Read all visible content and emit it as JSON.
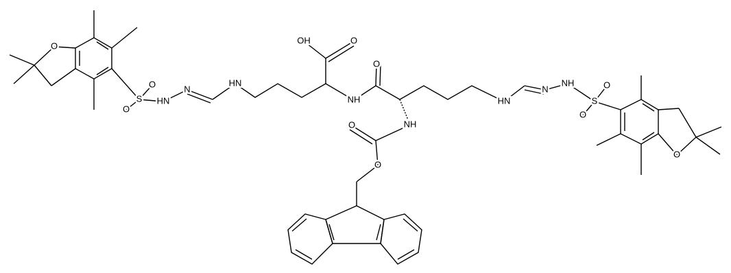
{
  "atoms": [
    "O",
    "S",
    "O",
    "O",
    "HN",
    "N",
    "HN",
    "OH",
    "O",
    "NH",
    "O",
    "NH",
    "O",
    "O",
    "HN",
    "N",
    "NH",
    "S",
    "O",
    "O",
    "O"
  ]
}
